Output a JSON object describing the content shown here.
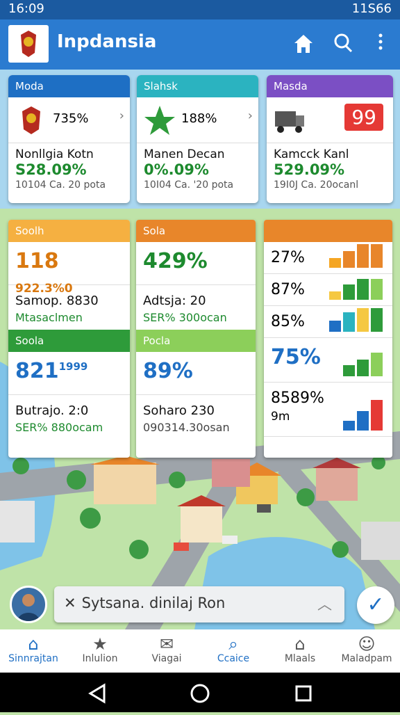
{
  "status_bar": {
    "time": "16:09",
    "right": "11S66"
  },
  "app_bar": {
    "title": "Inpdansia"
  },
  "top_cards": [
    {
      "header": "Moda",
      "value": "735%",
      "name": "Nonllgia Kotn",
      "big": "S28.09%",
      "sub": "10104 Ca. 20 pota"
    },
    {
      "header": "Slahsk",
      "value": "188%",
      "name": "Manen Decan",
      "big": "0%.09%",
      "sub": "10I04 Ca. '20 pota"
    },
    {
      "header": "Masda",
      "value": "99",
      "name": "Kamcck Kanl",
      "big": "529.09%",
      "sub": "19I0J Ca. 20ocanl"
    }
  ],
  "panels": [
    {
      "header": "Soolh",
      "big": "118",
      "big_small": "922.3%0",
      "line1": "Samop. 8830",
      "line2": "Mtasaclmen",
      "header2": "Soola",
      "big2": "821",
      "big2_small": "1999",
      "line3": "Butrajo. 2:0",
      "line4": "SER% 880ocam"
    },
    {
      "header": "Sola",
      "big": "429%",
      "line1": "Adtsja: 20",
      "line2": "SER% 300ocan",
      "header2": "Pocla",
      "big2": "89%",
      "line3": "Soharo 230",
      "line4": "090314.30osan"
    },
    {
      "rows": [
        "27%",
        "87%",
        "85%",
        "75%",
        "8589%"
      ],
      "row_sub": "9m"
    }
  ],
  "toast": {
    "text": "Sytsana. dinilaj Ron"
  },
  "bottom_nav": [
    "Sinnrajtan",
    "Inlulion",
    "Viagai",
    "Ccaice",
    "Mlaals",
    "Maladpam"
  ]
}
